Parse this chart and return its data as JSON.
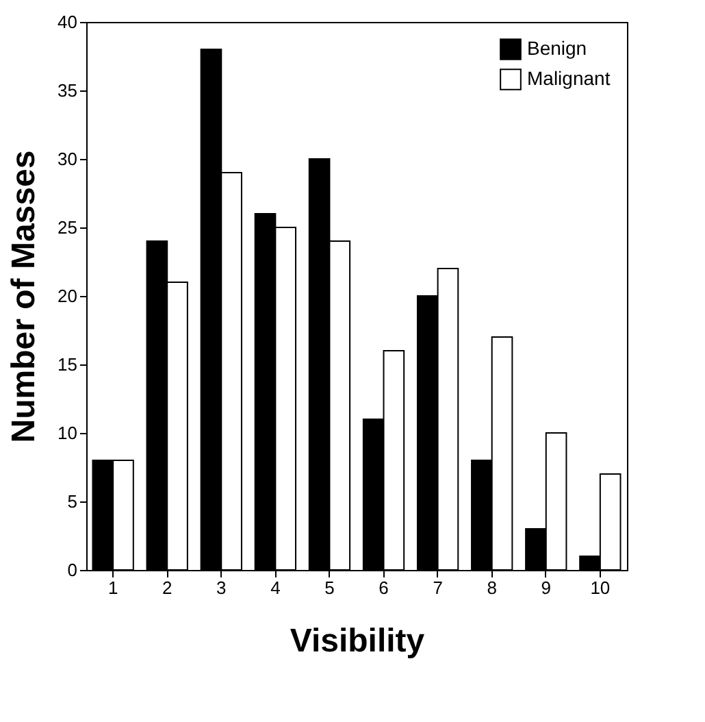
{
  "chart_data": {
    "type": "bar",
    "xlabel": "Visibility",
    "ylabel": "Number of Masses",
    "categories": [
      "1",
      "2",
      "3",
      "4",
      "5",
      "6",
      "7",
      "8",
      "9",
      "10"
    ],
    "series": [
      {
        "name": "Benign",
        "color": "#000000",
        "values": [
          8,
          24,
          38,
          26,
          30,
          11,
          20,
          8,
          3,
          1
        ]
      },
      {
        "name": "Malignant",
        "color": "#ffffff",
        "values": [
          8,
          21,
          29,
          25,
          24,
          16,
          22,
          17,
          10,
          7
        ]
      }
    ],
    "ylim": [
      0,
      40
    ],
    "yticks": [
      0,
      5,
      10,
      15,
      20,
      25,
      30,
      35,
      40
    ],
    "grid": false,
    "legend": "top right"
  }
}
